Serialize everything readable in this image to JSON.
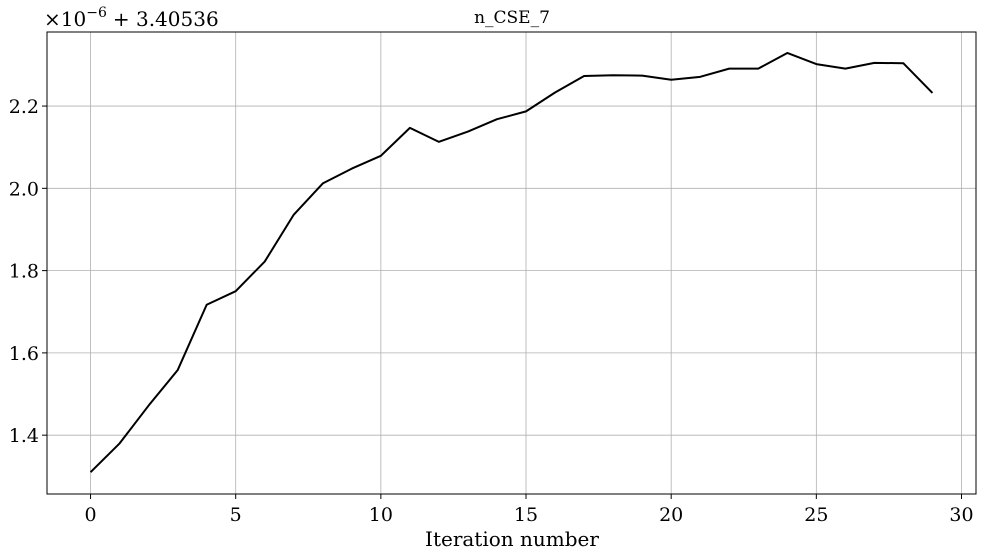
{
  "chart_data": {
    "type": "line",
    "title": "n_CSE_7",
    "xlabel": "Iteration number",
    "ylabel": "",
    "offset_text_prefix": "×10",
    "offset_text_exponent": "−6",
    "offset_text_suffix": "+ 3.40536",
    "xlim": [
      -1.5,
      30.5
    ],
    "ylim": [
      1.257,
      2.38
    ],
    "grid": true,
    "x_ticks": [
      0,
      5,
      10,
      15,
      20,
      25,
      30
    ],
    "x_tick_labels": [
      "0",
      "5",
      "10",
      "15",
      "20",
      "25",
      "30"
    ],
    "y_ticks": [
      1.4,
      1.6,
      1.8,
      2.0,
      2.2
    ],
    "y_tick_labels": [
      "1.4",
      "1.6",
      "1.8",
      "2.0",
      "2.2"
    ],
    "series": [
      {
        "color": "#000000",
        "x": [
          0,
          1,
          2,
          3,
          4,
          5,
          6,
          7,
          8,
          9,
          10,
          11,
          12,
          13,
          14,
          15,
          16,
          17,
          18,
          19,
          20,
          21,
          22,
          23,
          24,
          25,
          26,
          27,
          28,
          29
        ],
        "y": [
          1.31,
          1.38,
          1.472,
          1.558,
          1.717,
          1.75,
          1.822,
          1.936,
          2.012,
          2.048,
          2.079,
          2.147,
          2.113,
          2.138,
          2.168,
          2.187,
          2.233,
          2.273,
          2.275,
          2.274,
          2.264,
          2.271,
          2.291,
          2.291,
          2.329,
          2.302,
          2.291,
          2.305,
          2.304,
          2.232
        ]
      }
    ]
  }
}
